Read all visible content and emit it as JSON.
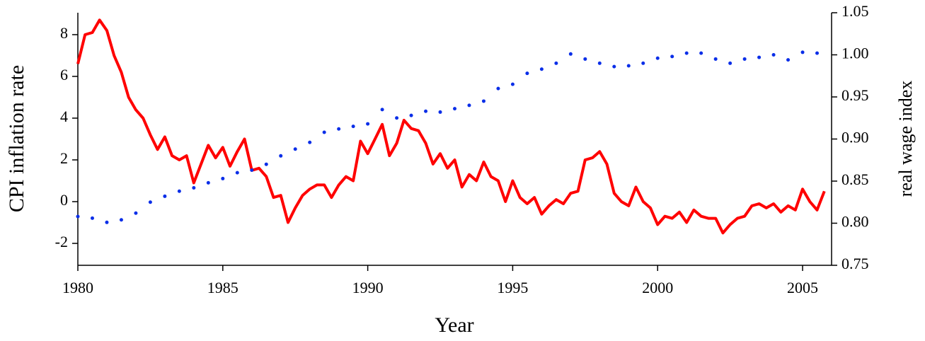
{
  "chart_data": {
    "type": "line",
    "x_label": "Year",
    "y_label": "CPI inflation rate",
    "y2_label": "real wage index",
    "xlim": [
      1980,
      2006
    ],
    "xticks": [
      1980,
      1985,
      1990,
      1995,
      2000,
      2005
    ],
    "ylim": [
      -3.05,
      9.05
    ],
    "yticks": [
      -2,
      0,
      2,
      4,
      6,
      8
    ],
    "y2lim": [
      0.75,
      1.05
    ],
    "y2ticks": [
      0.75,
      {
        "value": 0.8,
        "label": "0.80"
      },
      0.85,
      {
        "value": 0.9,
        "label": "0.90"
      },
      0.95,
      {
        "value": 1,
        "label": "1.00"
      },
      1.05
    ],
    "grid": false,
    "series": [
      {
        "name": "CPI inflation rate",
        "color": "#ff0000",
        "mode": "line",
        "x": [
          1980,
          1980.25,
          1980.5,
          1980.75,
          1981,
          1981.25,
          1981.5,
          1981.75,
          1982,
          1982.25,
          1982.5,
          1982.75,
          1983,
          1983.25,
          1983.5,
          1983.75,
          1984,
          1984.25,
          1984.5,
          1984.75,
          1985,
          1985.25,
          1985.5,
          1985.75,
          1986,
          1986.25,
          1986.5,
          1986.75,
          1987,
          1987.25,
          1987.5,
          1987.75,
          1988,
          1988.25,
          1988.5,
          1988.75,
          1989,
          1989.25,
          1989.5,
          1989.75,
          1990,
          1990.25,
          1990.5,
          1990.75,
          1991,
          1991.25,
          1991.5,
          1991.75,
          1992,
          1992.25,
          1992.5,
          1992.75,
          1993,
          1993.25,
          1993.5,
          1993.75,
          1994,
          1994.25,
          1994.5,
          1994.75,
          1995,
          1995.25,
          1995.5,
          1995.75,
          1996,
          1996.25,
          1996.5,
          1996.75,
          1997,
          1997.25,
          1997.5,
          1997.75,
          1998,
          1998.25,
          1998.5,
          1998.75,
          1999,
          1999.25,
          1999.5,
          1999.75,
          2000,
          2000.25,
          2000.5,
          2000.75,
          2001,
          2001.25,
          2001.5,
          2001.75,
          2002,
          2002.25,
          2002.5,
          2002.75,
          2003,
          2003.25,
          2003.5,
          2003.75,
          2004,
          2004.25,
          2004.5,
          2004.75,
          2005,
          2005.25,
          2005.5,
          2005.75
        ],
        "values": [
          6.6,
          8.0,
          8.1,
          8.7,
          8.2,
          7.0,
          6.2,
          5.0,
          4.4,
          4.0,
          3.2,
          2.5,
          3.1,
          2.2,
          2.0,
          2.2,
          0.9,
          1.8,
          2.7,
          2.1,
          2.6,
          1.7,
          2.4,
          3.0,
          1.5,
          1.6,
          1.2,
          0.2,
          0.3,
          -1.0,
          -0.3,
          0.3,
          0.6,
          0.8,
          0.8,
          0.2,
          0.8,
          1.2,
          1.0,
          2.9,
          2.3,
          3.0,
          3.7,
          2.2,
          2.8,
          3.9,
          3.5,
          3.4,
          2.8,
          1.8,
          2.3,
          1.6,
          2.0,
          0.7,
          1.3,
          1.0,
          1.9,
          1.2,
          1.0,
          0.0,
          1.0,
          0.2,
          -0.1,
          0.2,
          -0.6,
          -0.2,
          0.1,
          -0.1,
          0.4,
          0.5,
          2.0,
          2.1,
          2.4,
          1.8,
          0.4,
          0.0,
          -0.2,
          0.7,
          0.0,
          -0.3,
          -1.1,
          -0.7,
          -0.8,
          -0.5,
          -1.0,
          -0.4,
          -0.7,
          -0.8,
          -0.8,
          -1.5,
          -1.1,
          -0.8,
          -0.7,
          -0.2,
          -0.1,
          -0.3,
          -0.1,
          -0.5,
          -0.2,
          -0.4,
          0.6,
          0.0,
          -0.4,
          0.5
        ]
      },
      {
        "name": "real wage index",
        "color": "#0a2ee8",
        "mode": "markers",
        "axis": "y2",
        "x": [
          1980,
          1980.5,
          1981,
          1981.5,
          1982,
          1982.5,
          1983,
          1983.5,
          1984,
          1984.5,
          1985,
          1985.5,
          1986,
          1986.5,
          1987,
          1987.5,
          1988,
          1988.5,
          1989,
          1989.5,
          1990,
          1990.5,
          1991,
          1991.5,
          1992,
          1992.5,
          1993,
          1993.5,
          1994,
          1994.5,
          1995,
          1995.5,
          1996,
          1996.5,
          1997,
          1997.5,
          1998,
          1998.5,
          1999,
          1999.5,
          2000,
          2000.5,
          2001,
          2001.5,
          2002,
          2002.5,
          2003,
          2003.5,
          2004,
          2004.5,
          2005,
          2005.5
        ],
        "values": [
          0.808,
          0.806,
          0.801,
          0.804,
          0.812,
          0.825,
          0.832,
          0.838,
          0.842,
          0.848,
          0.853,
          0.86,
          0.863,
          0.87,
          0.88,
          0.888,
          0.896,
          0.908,
          0.912,
          0.915,
          0.918,
          0.935,
          0.925,
          0.928,
          0.933,
          0.932,
          0.936,
          0.94,
          0.945,
          0.96,
          0.965,
          0.978,
          0.983,
          0.99,
          1.001,
          0.995,
          0.99,
          0.986,
          0.987,
          0.99,
          0.996,
          0.998,
          1.002,
          1.002,
          0.995,
          0.99,
          0.995,
          0.997,
          1.0,
          0.994,
          1.003,
          1.002
        ]
      }
    ]
  }
}
